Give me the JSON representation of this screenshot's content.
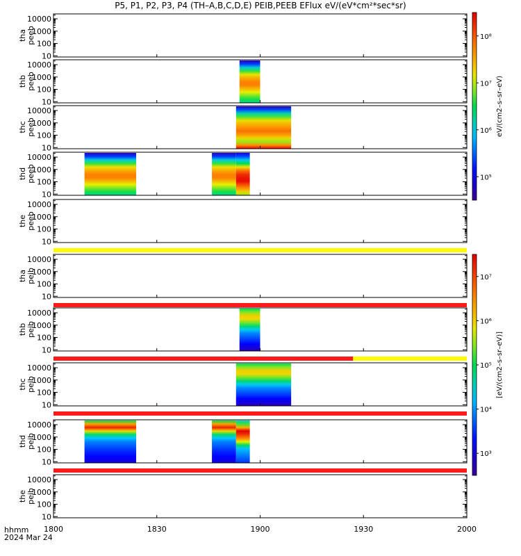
{
  "title": "P5, P1, P2, P3, P4 (TH–A,B,C,D,E) PEIB,PEEB EFlux eV/(eV*cm²*sec*sr)",
  "footer": {
    "hhmm": "hhmm",
    "date": "2024 Mar 24"
  },
  "colors": {
    "flag_red": "#ff1a1a",
    "flag_yellow": "#ffff00",
    "axis": "#000000"
  },
  "chart_data": {
    "type": "heatmap",
    "x_axis": {
      "range": [
        "1800",
        "2000"
      ],
      "ticks": [
        "1800",
        "1830",
        "1900",
        "1930",
        "2000"
      ],
      "label": "hhmm"
    },
    "y_ticks": [
      "10",
      "100",
      "1000",
      "10000"
    ],
    "panels": [
      {
        "probe": "tha",
        "product": "peeb",
        "label1": "tha",
        "label2": "peeb",
        "blocks": []
      },
      {
        "probe": "thb",
        "product": "peeb",
        "label1": "thb",
        "label2": "peeb",
        "blocks": [
          {
            "start": "1854",
            "end": "1900",
            "style": "peeb"
          }
        ]
      },
      {
        "probe": "thc",
        "product": "peeb",
        "label1": "thc",
        "label2": "peeb",
        "blocks": [
          {
            "start": "1853",
            "end": "1909",
            "style": "peeb_low"
          }
        ]
      },
      {
        "probe": "thd",
        "product": "peeb",
        "label1": "thd",
        "label2": "peeb",
        "blocks": [
          {
            "start": "1809",
            "end": "1824",
            "style": "peeb"
          },
          {
            "start": "1846",
            "end": "1853",
            "style": "peeb"
          },
          {
            "start": "1853",
            "end": "1857",
            "style": "peeb_hot"
          }
        ]
      },
      {
        "probe": "the",
        "product": "peeb",
        "label1": "the",
        "label2": "peeb",
        "blocks": [],
        "flag_below": [
          {
            "start": "1800",
            "end": "2000",
            "color": "yellow"
          }
        ]
      },
      {
        "probe": "tha",
        "product": "peib",
        "label1": "tha",
        "label2": "peib",
        "blocks": [],
        "flag_below": [
          {
            "start": "1800",
            "end": "2000",
            "color": "red"
          }
        ]
      },
      {
        "probe": "thb",
        "product": "peib",
        "label1": "thb",
        "label2": "peib",
        "blocks": [
          {
            "start": "1854",
            "end": "1900",
            "style": "peib"
          }
        ],
        "flag_below": [
          {
            "start": "1800",
            "end": "1927",
            "color": "red"
          },
          {
            "start": "1927",
            "end": "2000",
            "color": "yellow"
          }
        ]
      },
      {
        "probe": "thc",
        "product": "peib",
        "label1": "thc",
        "label2": "peib",
        "blocks": [
          {
            "start": "1853",
            "end": "1909",
            "style": "peib"
          }
        ],
        "flag_below": [
          {
            "start": "1800",
            "end": "2000",
            "color": "red"
          }
        ]
      },
      {
        "probe": "thd",
        "product": "peib",
        "label1": "thd",
        "label2": "peib",
        "blocks": [
          {
            "start": "1809",
            "end": "1824",
            "style": "peib_band"
          },
          {
            "start": "1846",
            "end": "1853",
            "style": "peib_band"
          },
          {
            "start": "1853",
            "end": "1857",
            "style": "peib_hot"
          }
        ],
        "flag_below": [
          {
            "start": "1800",
            "end": "2000",
            "color": "red"
          }
        ]
      },
      {
        "probe": "the",
        "product": "peib",
        "label1": "the",
        "label2": "peib",
        "blocks": []
      }
    ],
    "colorbars": [
      {
        "id": "peeb-bar",
        "ticks": [
          "10⁵",
          "10⁶",
          "10⁷",
          "10⁸"
        ],
        "label": "eV/(cm2–s–sr–eV)"
      },
      {
        "id": "peib-bar",
        "ticks": [
          "10³",
          "10⁴",
          "10⁵",
          "10⁶",
          "10⁷"
        ],
        "label": "[eV/(cm2–s–sr–eV)]"
      }
    ]
  }
}
